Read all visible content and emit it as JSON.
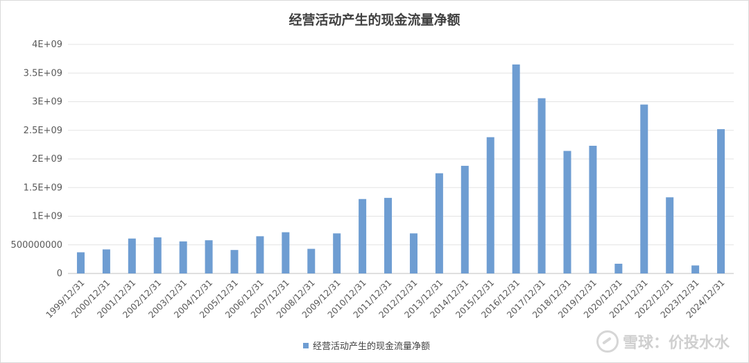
{
  "chart_data": {
    "type": "bar",
    "title": "经营活动产生的现金流量净额",
    "categories": [
      "1999/12/31",
      "2000/12/31",
      "2001/12/31",
      "2002/12/31",
      "2003/12/31",
      "2004/12/31",
      "2005/12/31",
      "2006/12/31",
      "2007/12/31",
      "2008/12/31",
      "2009/12/31",
      "2010/12/31",
      "2011/12/31",
      "2012/12/31",
      "2013/12/31",
      "2014/12/31",
      "2015/12/31",
      "2016/12/31",
      "2017/12/31",
      "2018/12/31",
      "2019/12/31",
      "2020/12/31",
      "2021/12/31",
      "2022/12/31",
      "2023/12/31",
      "2024/12/31"
    ],
    "series": [
      {
        "name": "经营活动产生的现金流量净额",
        "values": [
          370000000,
          420000000,
          610000000,
          630000000,
          560000000,
          580000000,
          410000000,
          650000000,
          720000000,
          430000000,
          700000000,
          1300000000,
          1320000000,
          700000000,
          1750000000,
          1880000000,
          2380000000,
          3650000000,
          3060000000,
          2140000000,
          2230000000,
          170000000,
          2950000000,
          1330000000,
          140000000,
          2520000000
        ]
      }
    ],
    "ylim": [
      0,
      4000000000
    ],
    "yticks": [
      0,
      500000000,
      1000000000,
      1500000000,
      2000000000,
      2500000000,
      3000000000,
      3500000000,
      4000000000
    ],
    "ytick_labels": [
      "0",
      "500000000",
      "1E+09",
      "1.5E+09",
      "2E+09",
      "2.5E+09",
      "3E+09",
      "3.5E+09",
      "4E+09"
    ],
    "grid": true,
    "legend_position": "bottom",
    "bar_color": "#6e9dd2"
  },
  "watermark": {
    "text": "雪球：价投水水"
  }
}
